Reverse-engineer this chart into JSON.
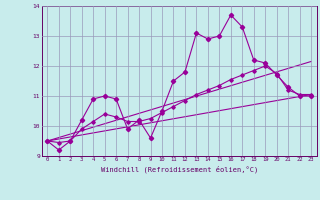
{
  "title": "",
  "xlabel": "Windchill (Refroidissement éolien,°C)",
  "xlim": [
    -0.5,
    23.5
  ],
  "ylim": [
    9,
    14
  ],
  "yticks": [
    9,
    10,
    11,
    12,
    13,
    14
  ],
  "xticks": [
    0,
    1,
    2,
    3,
    4,
    5,
    6,
    7,
    8,
    9,
    10,
    11,
    12,
    13,
    14,
    15,
    16,
    17,
    18,
    19,
    20,
    21,
    22,
    23
  ],
  "bg_color": "#c8ecec",
  "grid_color": "#9999bb",
  "line_color": "#990099",
  "line1_x": [
    0,
    1,
    2,
    3,
    4,
    5,
    6,
    7,
    8,
    9,
    10,
    11,
    12,
    13,
    14,
    15,
    16,
    17,
    18,
    19,
    20,
    21,
    22,
    23
  ],
  "line1_y": [
    9.5,
    9.2,
    9.5,
    10.2,
    10.9,
    11.0,
    10.9,
    9.9,
    10.2,
    9.6,
    10.5,
    11.5,
    11.8,
    13.1,
    12.9,
    13.0,
    13.7,
    13.3,
    12.2,
    12.1,
    11.7,
    11.3,
    11.0,
    11.0
  ],
  "line2_x": [
    0,
    1,
    2,
    3,
    4,
    5,
    6,
    7,
    8,
    9,
    10,
    11,
    12,
    13,
    14,
    15,
    16,
    17,
    18,
    19,
    20,
    21,
    22,
    23
  ],
  "line2_y": [
    9.5,
    9.45,
    9.5,
    9.9,
    10.15,
    10.4,
    10.3,
    10.15,
    10.15,
    10.25,
    10.45,
    10.65,
    10.85,
    11.05,
    11.2,
    11.35,
    11.55,
    11.7,
    11.85,
    12.0,
    11.75,
    11.2,
    11.05,
    11.05
  ],
  "line3_x": [
    0,
    23
  ],
  "line3_y": [
    9.5,
    11.05
  ],
  "line4_x": [
    0,
    23
  ],
  "line4_y": [
    9.5,
    12.15
  ]
}
